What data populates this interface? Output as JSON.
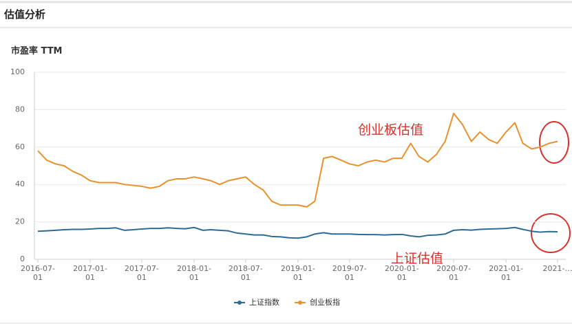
{
  "header": {
    "title": "估值分析"
  },
  "chart_data": {
    "type": "line",
    "subtitle": "市盈率 TTM",
    "x": [
      "2016-07-01",
      "2016-08-01",
      "2016-09-01",
      "2016-10-01",
      "2016-11-01",
      "2016-12-01",
      "2017-01-01",
      "2017-02-01",
      "2017-03-01",
      "2017-04-01",
      "2017-05-01",
      "2017-06-01",
      "2017-07-01",
      "2017-08-01",
      "2017-09-01",
      "2017-10-01",
      "2017-11-01",
      "2017-12-01",
      "2018-01-01",
      "2018-02-01",
      "2018-03-01",
      "2018-04-01",
      "2018-05-01",
      "2018-06-01",
      "2018-07-01",
      "2018-08-01",
      "2018-09-01",
      "2018-10-01",
      "2018-11-01",
      "2018-12-01",
      "2019-01-01",
      "2019-02-01",
      "2019-03-01",
      "2019-04-01",
      "2019-05-01",
      "2019-06-01",
      "2019-07-01",
      "2019-08-01",
      "2019-09-01",
      "2019-10-01",
      "2019-11-01",
      "2019-12-01",
      "2020-01-01",
      "2020-02-01",
      "2020-03-01",
      "2020-04-01",
      "2020-05-01",
      "2020-06-01",
      "2020-07-01",
      "2020-08-01",
      "2020-09-01",
      "2020-10-01",
      "2020-11-01",
      "2020-12-01",
      "2021-01-01",
      "2021-02-01",
      "2021-03-01",
      "2021-04-01",
      "2021-05-01",
      "2021-06-01",
      "2021-07-01"
    ],
    "series": [
      {
        "name": "上证指数",
        "color": "#2b6a94",
        "values": [
          15,
          15.2,
          15.5,
          15.8,
          16,
          16,
          16.2,
          16.5,
          16.5,
          16.8,
          15.5,
          15.8,
          16.2,
          16.5,
          16.5,
          16.8,
          16.5,
          16.3,
          17,
          15.5,
          15.8,
          15.5,
          15.2,
          14,
          13.5,
          13,
          13,
          12.2,
          12,
          11.5,
          11.3,
          12,
          13.5,
          14.2,
          13.5,
          13.5,
          13.5,
          13.3,
          13.2,
          13.2,
          13,
          13.2,
          13.3,
          12.5,
          12,
          12.8,
          13,
          13.5,
          15.5,
          15.8,
          15.6,
          16,
          16.2,
          16.3,
          16.5,
          17,
          16,
          15,
          14.5,
          14.8,
          14.7
        ]
      },
      {
        "name": "创业板指",
        "color": "#e8912a",
        "values": [
          58,
          53,
          51,
          50,
          47,
          45,
          42,
          41,
          41,
          41,
          40,
          39.5,
          39,
          38,
          39,
          42,
          43,
          43,
          44,
          43,
          42,
          40,
          42,
          43,
          44,
          40,
          37,
          31,
          29,
          29,
          29,
          28,
          31,
          54,
          55,
          53,
          51,
          50,
          52,
          53,
          52,
          54,
          54,
          62,
          55,
          52,
          56,
          63,
          78,
          72,
          63,
          68,
          64,
          62,
          68,
          73,
          62,
          59,
          60,
          62,
          63
        ]
      }
    ],
    "xlim": [
      "2016-06-19",
      "2021-07-30"
    ],
    "xticks": [
      "2016-07-01",
      "2017-01-01",
      "2017-07-01",
      "2018-01-01",
      "2018-07-01",
      "2019-01-01",
      "2019-07-01",
      "2020-01-01",
      "2020-07-01",
      "2021-01-01",
      {
        "value": "2021-07-01",
        "label": "2021-…"
      }
    ],
    "ylim": [
      0,
      100
    ],
    "yticks": [
      0,
      20,
      40,
      60,
      80,
      100
    ],
    "grid": true,
    "annotations": [
      "创业板估值",
      "上证估值"
    ]
  }
}
